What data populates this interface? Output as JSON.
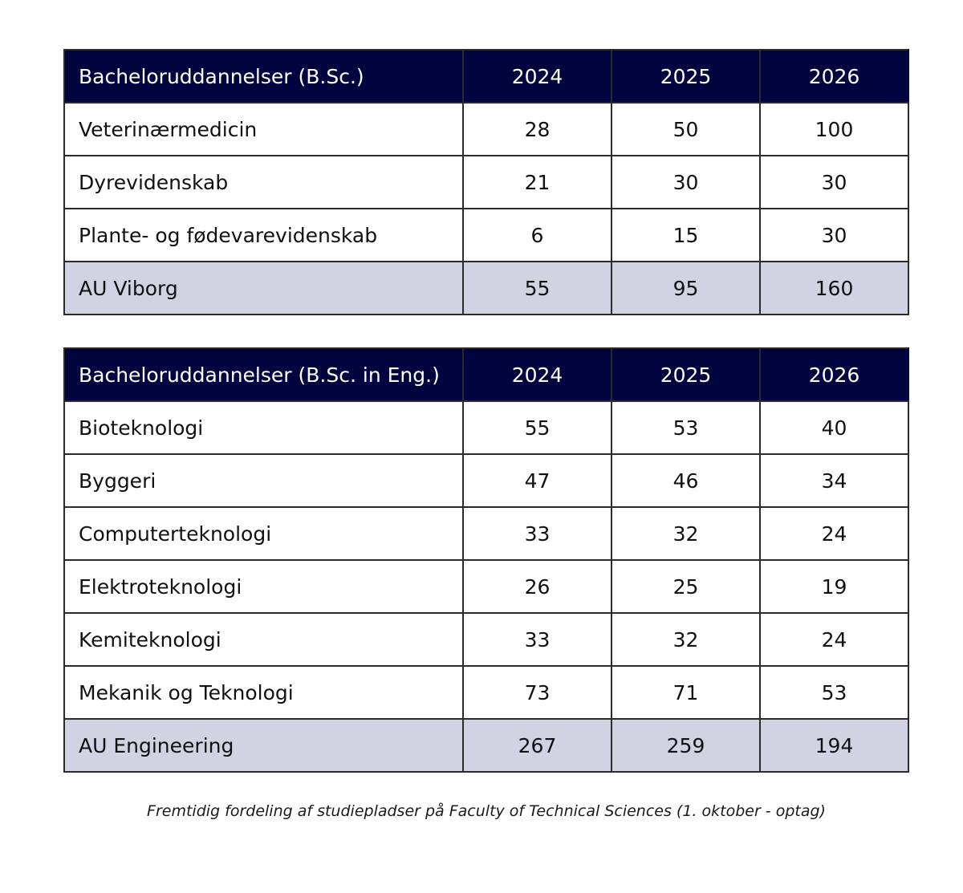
{
  "tables": [
    {
      "header": [
        "Bacheloruddannelser (B.Sc.)",
        "2024",
        "2025",
        "2026"
      ],
      "rows": [
        [
          "Veterinærmedicin",
          "28",
          "50",
          "100"
        ],
        [
          "Dyrevidenskab",
          "21",
          "30",
          "30"
        ],
        [
          "Plante- og fødevarevidenskab",
          "6",
          "15",
          "30"
        ]
      ],
      "total": [
        "AU Viborg",
        "55",
        "95",
        "160"
      ]
    },
    {
      "header": [
        "Bacheloruddannelser (B.Sc. in Eng.)",
        "2024",
        "2025",
        "2026"
      ],
      "rows": [
        [
          "Bioteknologi",
          "55",
          "53",
          "40"
        ],
        [
          "Byggeri",
          "47",
          "46",
          "34"
        ],
        [
          "Computerteknologi",
          "33",
          "32",
          "24"
        ],
        [
          "Elektroteknologi",
          "26",
          "25",
          "19"
        ],
        [
          "Kemiteknologi",
          "33",
          "32",
          "24"
        ],
        [
          "Mekanik og Teknologi",
          "73",
          "71",
          "53"
        ]
      ],
      "total": [
        "AU Engineering",
        "267",
        "259",
        "194"
      ]
    }
  ],
  "caption": "Fremtidig fordeling af studiepladser på Faculty of Technical Sciences (1. oktober - optag)",
  "colors": {
    "header_bg": "#020440",
    "header_text": "#ffffff",
    "total_bg": "#d1d3e3",
    "border": "#2b2b2b"
  }
}
